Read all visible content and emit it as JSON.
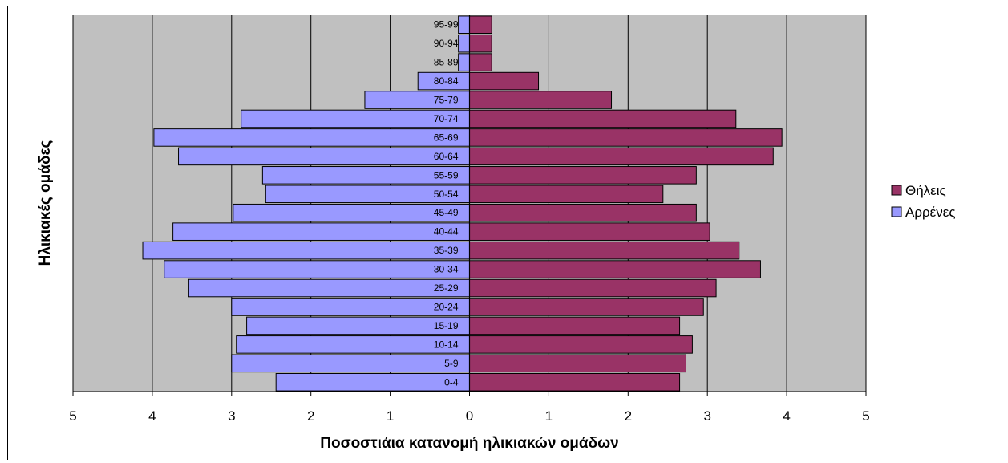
{
  "chart_data": {
    "type": "bar",
    "orientation": "horizontal",
    "layout": "population-pyramid",
    "categories": [
      "0-4",
      "5-9",
      "10-14",
      "15-19",
      "20-24",
      "25-29",
      "30-34",
      "35-39",
      "40-44",
      "45-49",
      "50-54",
      "55-59",
      "60-64",
      "65-69",
      "70-74",
      "75-79",
      "80-84",
      "85-89",
      "90-94",
      "95-99"
    ],
    "series": [
      {
        "name": "Θήλεις",
        "color": "#993366",
        "values": [
          2.65,
          2.73,
          2.81,
          2.65,
          2.95,
          3.11,
          3.67,
          3.4,
          3.03,
          2.86,
          2.44,
          2.86,
          3.83,
          3.94,
          3.36,
          1.79,
          0.87,
          0.28,
          0.28,
          0.28
        ]
      },
      {
        "name": "Αρρένες",
        "color": "#9999ff",
        "values": [
          2.44,
          3.0,
          2.94,
          2.81,
          3.0,
          3.54,
          3.85,
          4.12,
          3.74,
          2.98,
          2.57,
          2.61,
          3.67,
          3.98,
          2.88,
          1.32,
          0.65,
          0.14,
          0.14,
          0.14
        ]
      }
    ],
    "x_ticks": [
      "5",
      "4",
      "3",
      "2",
      "1",
      "0",
      "1",
      "2",
      "3",
      "4",
      "5"
    ],
    "xlim": [
      -5,
      5
    ],
    "xlabel": "Ποσοστιάια κατανομή ηλικιακών ομάδων",
    "ylabel": "Ηλικιακές ομάδες",
    "grid": "vertical",
    "plot_background": "#c0c0c0",
    "legend_position": "right"
  }
}
